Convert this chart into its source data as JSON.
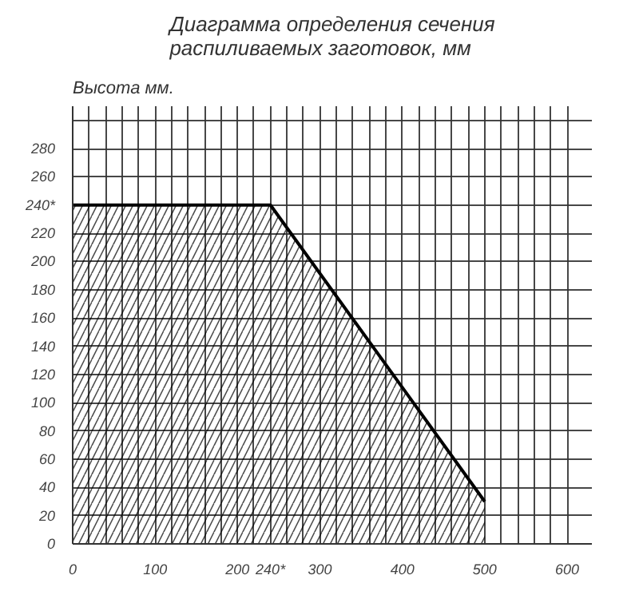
{
  "chart_data": {
    "type": "area",
    "title": "Диаграмма определения сечения\nраспиливаемых заготовок, мм",
    "ylabel": "Высота мм.",
    "x": [
      0,
      240,
      500
    ],
    "series": [
      {
        "color": "#000000",
        "values": [
          240,
          240,
          30
        ]
      }
    ],
    "xlim": [
      0,
      630
    ],
    "ylim": [
      0,
      310
    ],
    "xticks": [
      0,
      {
        "value": 20,
        "label": null
      },
      {
        "value": 40,
        "label": null
      },
      {
        "value": 60,
        "label": null
      },
      {
        "value": 80,
        "label": null
      },
      100,
      {
        "value": 120,
        "label": null
      },
      {
        "value": 140,
        "label": null
      },
      {
        "value": 160,
        "label": null
      },
      {
        "value": 180,
        "label": null
      },
      200,
      {
        "value": 220,
        "label": null
      },
      {
        "value": 240,
        "label": "240*"
      },
      {
        "value": 260,
        "label": null
      },
      {
        "value": 280,
        "label": null
      },
      300,
      {
        "value": 320,
        "label": null
      },
      {
        "value": 340,
        "label": null
      },
      {
        "value": 360,
        "label": null
      },
      {
        "value": 380,
        "label": null
      },
      400,
      {
        "value": 420,
        "label": null
      },
      {
        "value": 440,
        "label": null
      },
      {
        "value": 460,
        "label": null
      },
      {
        "value": 480,
        "label": null
      },
      500,
      {
        "value": 520,
        "label": null
      },
      {
        "value": 540,
        "label": null
      },
      {
        "value": 560,
        "label": null
      },
      {
        "value": 580,
        "label": null
      },
      600
    ],
    "yticks": [
      0,
      20,
      40,
      60,
      80,
      100,
      120,
      140,
      160,
      180,
      200,
      220,
      {
        "value": 240,
        "label": "240*"
      },
      260,
      280,
      {
        "value": 300,
        "label": null
      }
    ],
    "grid": true
  }
}
